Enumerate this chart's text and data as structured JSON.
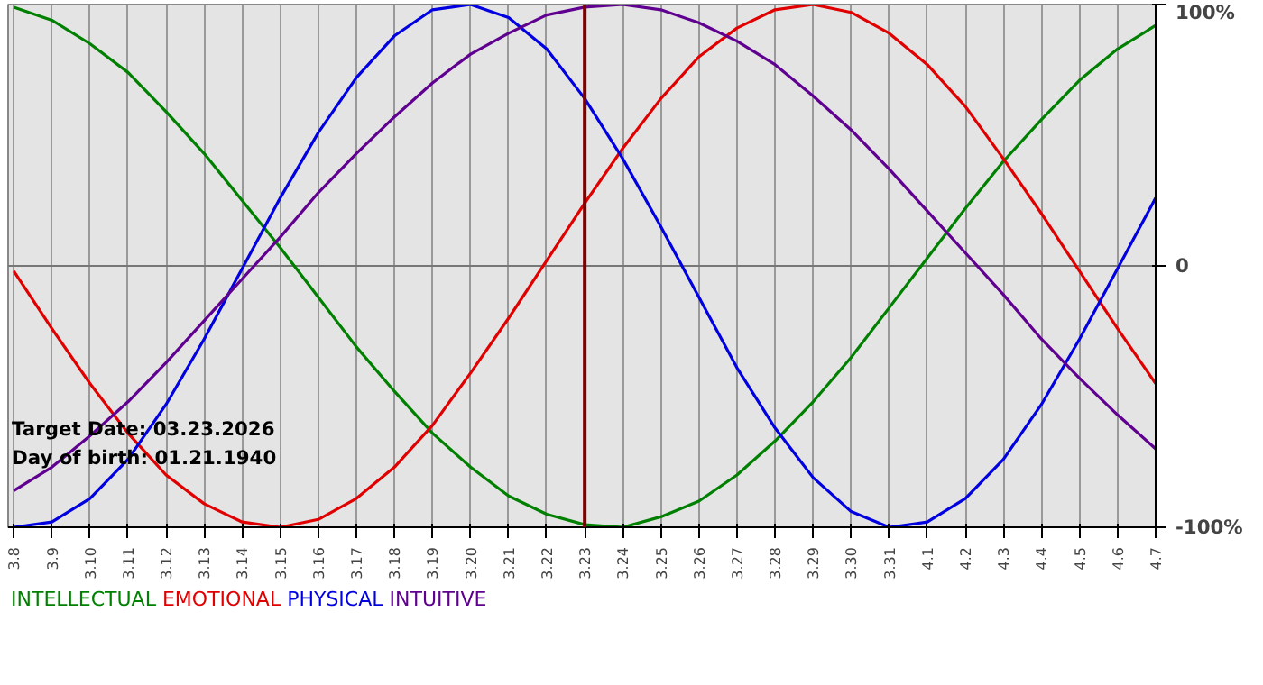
{
  "chart_data": {
    "type": "line",
    "categories": [
      "3.8",
      "3.9",
      "3.10",
      "3.11",
      "3.12",
      "3.13",
      "3.14",
      "3.15",
      "3.16",
      "3.17",
      "3.18",
      "3.19",
      "3.20",
      "3.21",
      "3.22",
      "3.23",
      "3.24",
      "3.25",
      "3.26",
      "3.27",
      "3.28",
      "3.29",
      "3.30",
      "3.31",
      "4.1",
      "4.2",
      "4.3",
      "4.4",
      "4.5",
      "4.6",
      "4.7"
    ],
    "series": [
      {
        "name": "INTELLECTUAL",
        "color": "#008000",
        "values": [
          99,
          94,
          85,
          74,
          59,
          43,
          25,
          7,
          -12,
          -31,
          -48,
          -64,
          -77,
          -88,
          -95,
          -99,
          -100,
          -96,
          -90,
          -80,
          -67,
          -52,
          -35,
          -16,
          3,
          22,
          40,
          56,
          71,
          83,
          92
        ]
      },
      {
        "name": "EMOTIONAL",
        "color": "#e00000",
        "values": [
          -2,
          -24,
          -45,
          -64,
          -80,
          -91,
          -98,
          -100,
          -97,
          -89,
          -77,
          -61,
          -41,
          -20,
          2,
          24,
          45,
          64,
          80,
          91,
          98,
          100,
          97,
          89,
          77,
          61,
          41,
          20,
          -2,
          -24,
          -45
        ]
      },
      {
        "name": "PHYSICAL",
        "color": "#0000e0",
        "values": [
          -100,
          -98,
          -89,
          -74,
          -53,
          -28,
          -1,
          26,
          51,
          72,
          88,
          98,
          100,
          95,
          83,
          64,
          41,
          15,
          -12,
          -39,
          -62,
          -81,
          -94,
          -100,
          -98,
          -89,
          -74,
          -53,
          -28,
          -1,
          26
        ]
      },
      {
        "name": "INTUITIVE",
        "color": "#600090",
        "values": [
          -86,
          -77,
          -65,
          -52,
          -37,
          -21,
          -5,
          11,
          28,
          43,
          57,
          70,
          81,
          89,
          96,
          99,
          100,
          98,
          93,
          86,
          77,
          65,
          52,
          37,
          21,
          5,
          -11,
          -28,
          -43,
          -57,
          -70
        ]
      }
    ],
    "ylim": [
      -100,
      100
    ],
    "yticks": [
      {
        "value": 100,
        "label": "100%"
      },
      0,
      {
        "value": -100,
        "label": "-100%"
      }
    ],
    "ref_lines": [
      {
        "axis": "x",
        "value": "3.23",
        "color": "#800000"
      }
    ],
    "annotations": [
      "Target Date: 03.23.2026",
      "Day of birth: 01.21.1940"
    ],
    "grid": true,
    "marker": "none",
    "line_style": "solid"
  }
}
